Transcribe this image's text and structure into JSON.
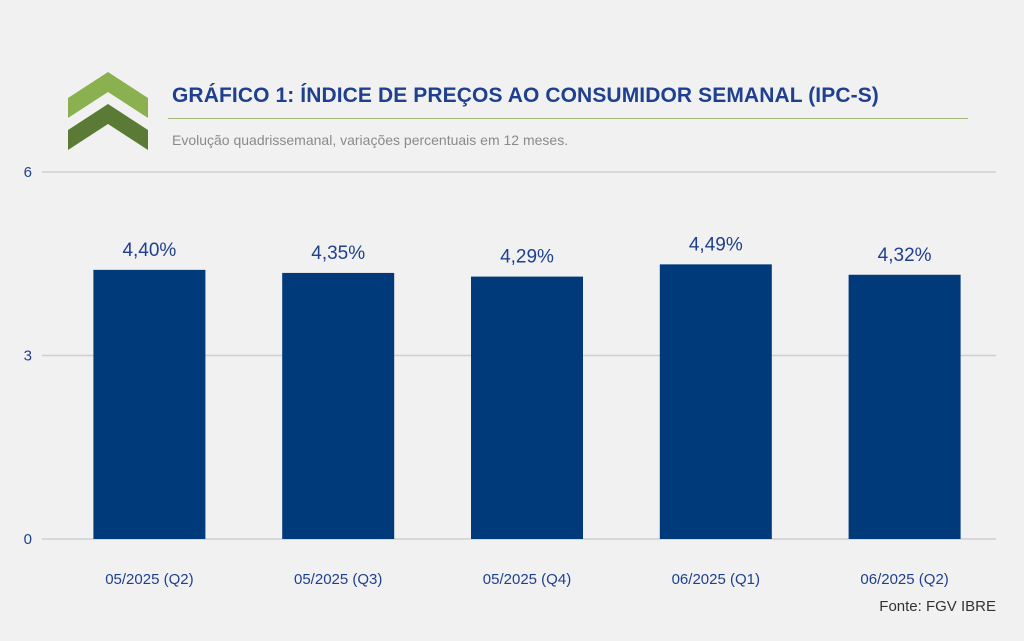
{
  "header": {
    "title": "GRÁFICO 1: ÍNDICE DE PREÇOS AO CONSUMIDOR SEMANAL (IPC-S)",
    "subtitle": "Evolução quadrissemanal, variações percentuais em 12 meses.",
    "logo_icon": "double-chevron-up-icon"
  },
  "footer": {
    "source": "Fonte: FGV IBRE"
  },
  "colors": {
    "bar": "#003a7a",
    "text": "#1f3f8f",
    "grid": "#cfcfcf",
    "logo_light": "#8bb04f",
    "logo_dark": "#5a7a35"
  },
  "chart_data": {
    "type": "bar",
    "categories": [
      "05/2025 (Q2)",
      "05/2025 (Q3)",
      "05/2025 (Q4)",
      "06/2025 (Q1)",
      "06/2025 (Q2)"
    ],
    "values": [
      4.4,
      4.35,
      4.29,
      4.49,
      4.32
    ],
    "data_labels": [
      "4,40%",
      "4,35%",
      "4,29%",
      "4,49%",
      "4,32%"
    ],
    "ylim": [
      0,
      6
    ],
    "yticks": [
      0,
      3,
      6
    ],
    "ytick_labels": [
      "0",
      "3",
      "6"
    ],
    "grid": true,
    "legend": "none"
  }
}
